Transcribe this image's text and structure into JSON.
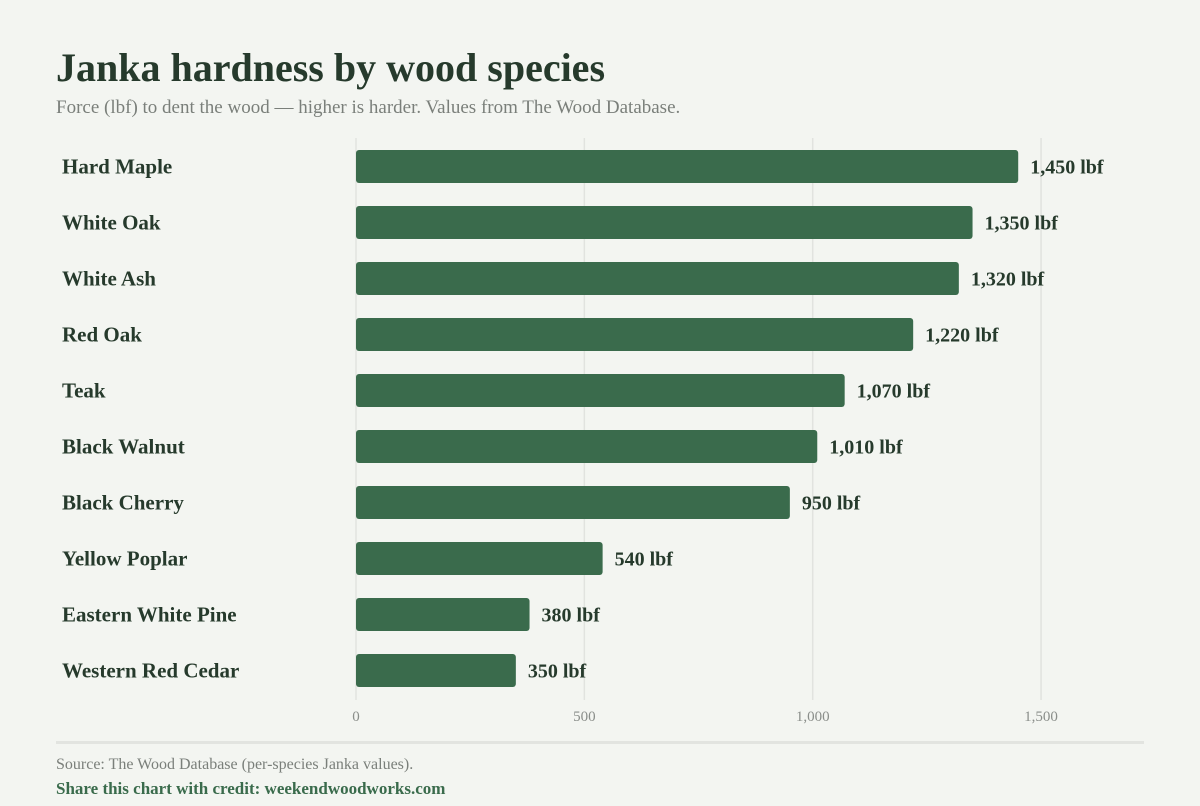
{
  "colors": {
    "background": "#f3f5f1",
    "bar": "#3a6b4c",
    "grid": "#e1e3df",
    "label_text": "#263a2c",
    "tick_text": "#8a8e8a",
    "credit_text": "#3a6b4c"
  },
  "chart_data": {
    "type": "bar",
    "orientation": "horizontal",
    "title": "Janka hardness by wood species",
    "subtitle": "Force (lbf) to dent the wood — higher is harder. Values from The Wood Database.",
    "categories": [
      "Hard Maple",
      "White Oak",
      "White Ash",
      "Red Oak",
      "Teak",
      "Black Walnut",
      "Black Cherry",
      "Yellow Poplar",
      "Eastern White Pine",
      "Western Red Cedar"
    ],
    "values": [
      1450,
      1350,
      1320,
      1220,
      1070,
      1010,
      950,
      540,
      380,
      350
    ],
    "value_labels": [
      "1,450 lbf",
      "1,350 lbf",
      "1,320 lbf",
      "1,220 lbf",
      "1,070 lbf",
      "1,010 lbf",
      "950 lbf",
      "540 lbf",
      "380 lbf",
      "350 lbf"
    ],
    "xlim": [
      0,
      1750
    ],
    "x_ticks": [
      0,
      500,
      1000,
      1500
    ],
    "x_tick_labels": [
      "0",
      "500",
      "1,000",
      "1,500"
    ],
    "xlabel": "",
    "ylabel": "",
    "grid": "vertical",
    "legend": "none"
  },
  "footer": {
    "source": "Source: The Wood Database (per-species Janka values).",
    "credit": "Share this chart with credit: weekendwoodworks.com"
  }
}
